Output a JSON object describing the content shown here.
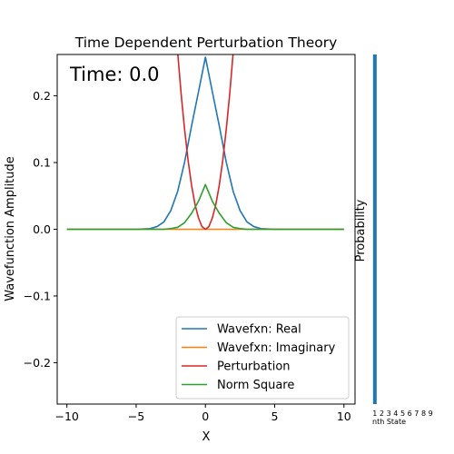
{
  "chart_data": [
    {
      "type": "line",
      "title": "Time Dependent Perturbation Theory",
      "xlabel": "X",
      "ylabel": "Wavefunction Amplitude",
      "annotation": "Time: 0.0",
      "xlim": [
        -10.7,
        10.8
      ],
      "ylim": [
        -0.262,
        0.262
      ],
      "xticks": [
        -10,
        -5,
        0,
        5,
        10
      ],
      "xtick_labels": [
        "−10",
        "−5",
        "0",
        "5",
        "10"
      ],
      "yticks": [
        -0.2,
        -0.1,
        0.0,
        0.1,
        0.2
      ],
      "ytick_labels": [
        "−0.2",
        "−0.1",
        "0.0",
        "0.1",
        "0.2"
      ],
      "grid": false,
      "legend_position": "lower-right",
      "series": [
        {
          "name": "Wavefxn: Real",
          "color": "#1f77b4",
          "x": [
            -10,
            -5,
            -4,
            -3.5,
            -3,
            -2.5,
            -2,
            -1.5,
            -1,
            -0.5,
            0,
            0.5,
            1,
            1.5,
            2,
            2.5,
            3,
            3.5,
            4,
            5,
            10
          ],
          "y": [
            0.0,
            0.0,
            0.001,
            0.004,
            0.011,
            0.028,
            0.057,
            0.101,
            0.155,
            0.206,
            0.258,
            0.206,
            0.155,
            0.101,
            0.057,
            0.028,
            0.011,
            0.004,
            0.001,
            0.0,
            0.0
          ]
        },
        {
          "name": "Wavefxn: Imaginary",
          "color": "#ff7f0e",
          "x": [
            -10,
            10
          ],
          "y": [
            0.0,
            0.0
          ]
        },
        {
          "name": "Perturbation",
          "color": "#d62728",
          "x": [
            -2.0,
            -1.75,
            -1.5,
            -1.25,
            -1.0,
            -0.75,
            -0.5,
            -0.25,
            0,
            0.25,
            0.5,
            0.75,
            1.0,
            1.25,
            1.5,
            1.75,
            2.0
          ],
          "y": [
            0.264,
            0.202,
            0.149,
            0.103,
            0.066,
            0.037,
            0.017,
            0.004,
            0.0,
            0.004,
            0.017,
            0.037,
            0.066,
            0.103,
            0.149,
            0.202,
            0.264
          ]
        },
        {
          "name": "Norm Square",
          "color": "#2ca02c",
          "x": [
            -10,
            -4,
            -3.5,
            -3,
            -2.5,
            -2,
            -1.5,
            -1,
            -0.5,
            0,
            0.5,
            1,
            1.5,
            2,
            2.5,
            3,
            3.5,
            4,
            10
          ],
          "y": [
            0.0,
            0.0,
            0.0,
            0.0,
            0.001,
            0.003,
            0.01,
            0.024,
            0.042,
            0.067,
            0.042,
            0.024,
            0.01,
            0.003,
            0.001,
            0.0,
            0.0,
            0.0,
            0.0
          ]
        }
      ]
    },
    {
      "type": "bar",
      "ylabel": "Probability",
      "xlabel": "nth State",
      "categories": [
        "1",
        "2",
        "3",
        "4",
        "5",
        "6",
        "7",
        "8",
        "9"
      ],
      "values": [
        1,
        0,
        0,
        0,
        0,
        0,
        0,
        0,
        0
      ],
      "ylim": [
        0,
        1
      ],
      "color": "#1f77b4"
    }
  ]
}
